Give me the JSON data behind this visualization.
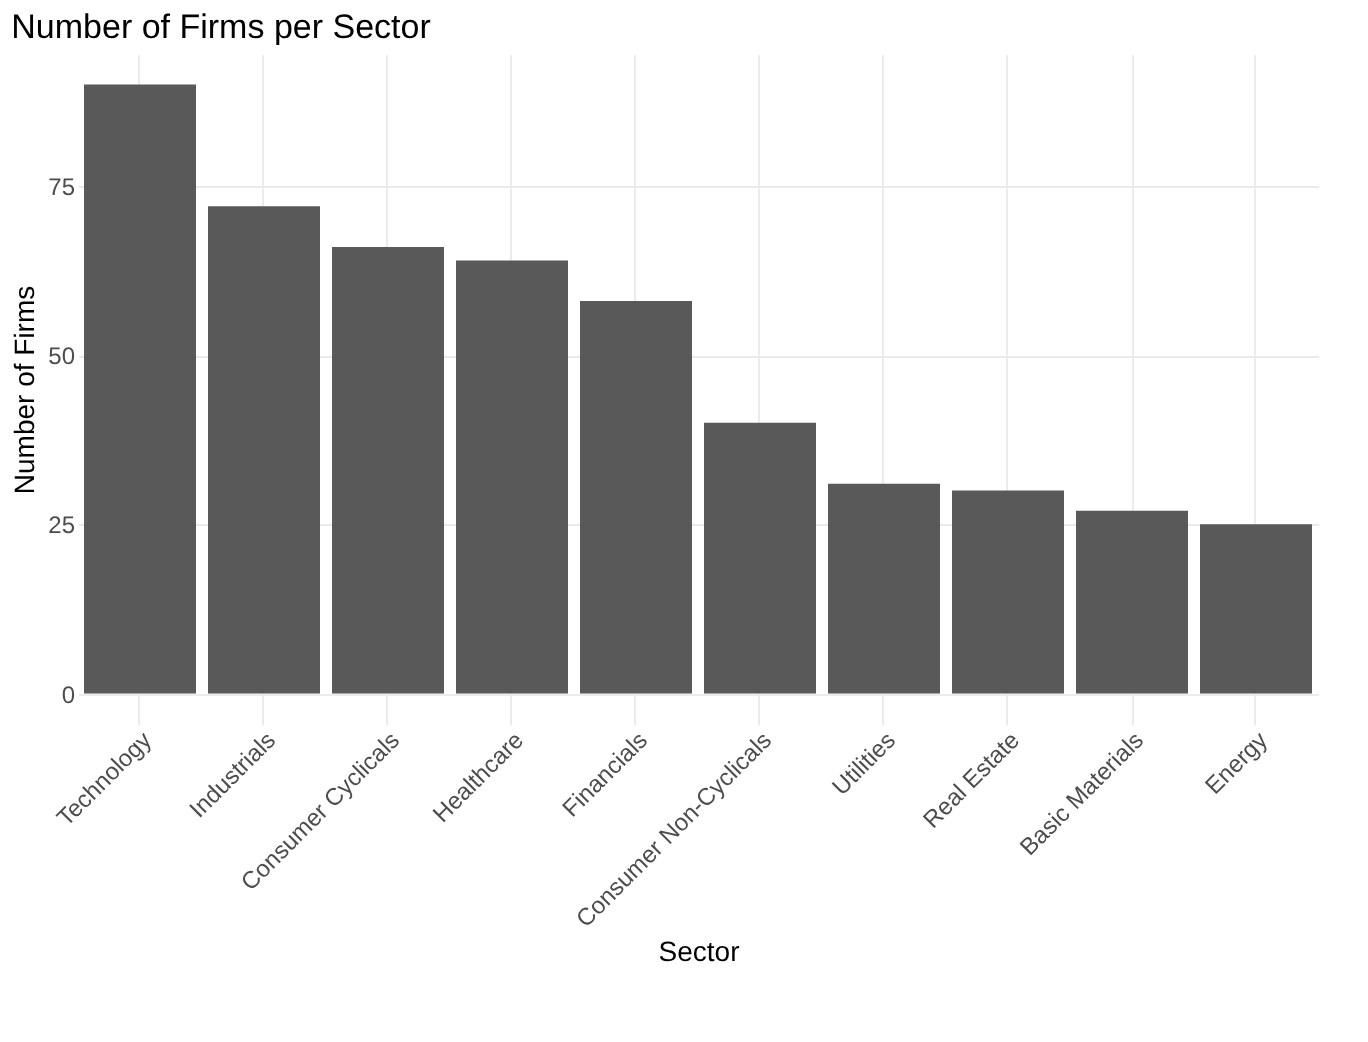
{
  "chart_data": {
    "type": "bar",
    "title": "Number of Firms per Sector",
    "xlabel": "Sector",
    "ylabel": "Number of Firms",
    "categories": [
      "Technology",
      "Industrials",
      "Consumer Cyclicals",
      "Healthcare",
      "Financials",
      "Consumer Non-Cyclicals",
      "Utilities",
      "Real Estate",
      "Basic Materials",
      "Energy"
    ],
    "values": [
      90,
      72,
      66,
      64,
      58,
      40,
      31,
      30,
      27,
      25
    ],
    "color": "#595959",
    "ylim": [
      -4.5,
      94.5
    ],
    "yticks": [
      0,
      25,
      50,
      75
    ],
    "grid": true
  }
}
